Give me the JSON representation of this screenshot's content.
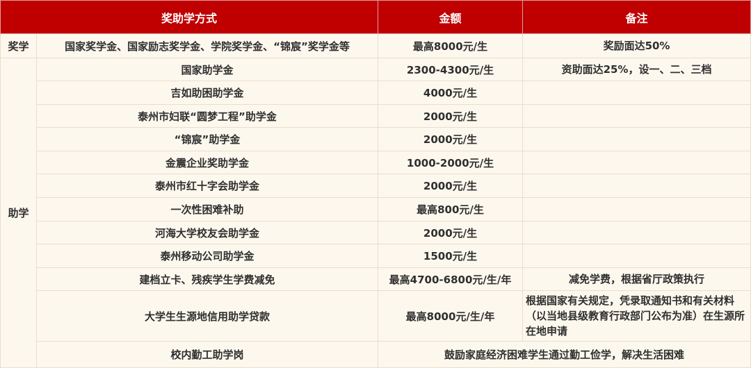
{
  "header": {
    "method": "奖助学方式",
    "amount": "金额",
    "note": "备注"
  },
  "accent_color": "#c00000",
  "scholarship": {
    "category": "奖学",
    "name": "国家奖学金、国家励志奖学金、学院奖学金、“锦宸”奖学金等",
    "amount": "最高8000元/生",
    "note": "奖励面达50%"
  },
  "aid": {
    "category": "助学",
    "rows": [
      {
        "name": "国家助学金",
        "amount": "2300-4300元/生",
        "note": "资助面达25%，设一、二、三档"
      },
      {
        "name": "吉如助困助学金",
        "amount": "4000元/生",
        "note": ""
      },
      {
        "name": "泰州市妇联“圆梦工程”助学金",
        "amount": "2000元/生",
        "note": ""
      },
      {
        "name": "“锦宸”助学金",
        "amount": "2000元/生",
        "note": ""
      },
      {
        "name": "金震企业奖助学金",
        "amount": "1000-2000元/生",
        "note": ""
      },
      {
        "name": "泰州市红十字会助学金",
        "amount": "2000元/生",
        "note": ""
      },
      {
        "name": "一次性困难补助",
        "amount": "最高800元/生",
        "note": ""
      },
      {
        "name": "河海大学校友会助学金",
        "amount": "2000元/生",
        "note": ""
      },
      {
        "name": "泰州移动公司助学金",
        "amount": "1500元/生",
        "note": ""
      },
      {
        "name": "建档立卡、残疾学生学费减免",
        "amount": "最高4700-6800元/生/年",
        "note": "减免学费，根据省厅政策执行"
      },
      {
        "name": "大学生生源地信用助学贷款",
        "amount": "最高8000元/生/年",
        "note": "根据国家有关规定，凭录取通知书和有关材料（以当地县级教育行政部门公布为准）在生源所在地申请"
      }
    ],
    "work_study": {
      "name": "校内勤工助学岗",
      "note": "鼓励家庭经济困难学生通过勤工俭学，解决生活困难"
    }
  }
}
